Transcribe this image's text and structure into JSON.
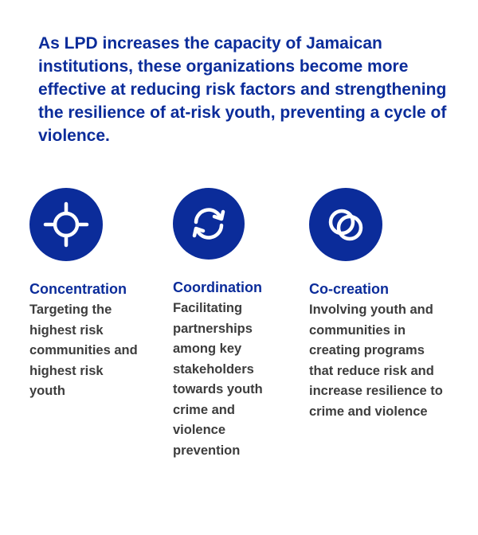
{
  "intro": {
    "text": "As LPD increases the capacity of Jamaican institutions, these organizations become more effective at reducing risk factors and strengthening the resilience of at-risk youth, preventing a cycle of violence."
  },
  "colors": {
    "brand_blue": "#0b2c9a",
    "body_text": "#3d3d3d",
    "background": "#ffffff"
  },
  "pillars": [
    {
      "icon": "crosshair-icon",
      "title": "Concentration",
      "description": "Targeting the highest risk communities and highest risk youth"
    },
    {
      "icon": "cycle-arrows-icon",
      "title": "Coordination",
      "description": "Facilitating partnerships among key stakeholders towards youth crime and violence prevention"
    },
    {
      "icon": "linked-rings-icon",
      "title": "Co-creation",
      "description": "Involving youth and communities in creating programs that reduce risk and increase resilience to crime and violence"
    }
  ]
}
